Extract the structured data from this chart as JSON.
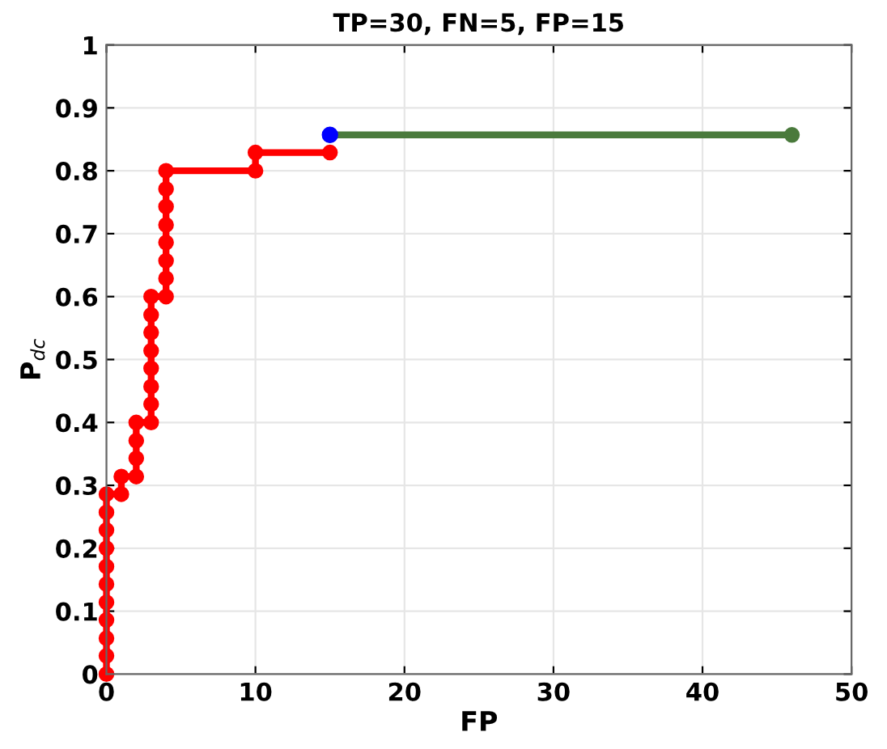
{
  "chart_data": {
    "type": "line",
    "title": "TP=30, FN=5, FP=15",
    "xlabel": "FP",
    "ylabel": "P$_{dc}$",
    "xlim": [
      0,
      50
    ],
    "xticks": [
      0,
      10,
      20,
      30,
      40,
      50
    ],
    "ylim": [
      0,
      1
    ],
    "yticks": [
      0,
      0.1,
      0.2,
      0.3,
      0.4,
      0.5,
      0.6,
      0.7,
      0.8,
      0.9,
      1
    ],
    "grid": true,
    "marker": "circle",
    "line_style": "solid",
    "series": [
      {
        "color": "#ff0000",
        "x": [
          0,
          0,
          0,
          0,
          0,
          0,
          0,
          0,
          0,
          0,
          0,
          1,
          1,
          2,
          2,
          2,
          2,
          3,
          3,
          3,
          3,
          3,
          3,
          3,
          3,
          4,
          4,
          4,
          4,
          4,
          4,
          4,
          4,
          10,
          10,
          15
        ],
        "values": [
          0,
          0.029,
          0.057,
          0.086,
          0.114,
          0.143,
          0.171,
          0.2,
          0.229,
          0.257,
          0.286,
          0.286,
          0.314,
          0.314,
          0.343,
          0.371,
          0.4,
          0.4,
          0.429,
          0.457,
          0.486,
          0.514,
          0.543,
          0.571,
          0.6,
          0.6,
          0.629,
          0.657,
          0.686,
          0.714,
          0.743,
          0.771,
          0.8,
          0.8,
          0.829,
          0.829
        ]
      },
      {
        "color": "#4a7a3c",
        "x": [
          15,
          46
        ],
        "values": [
          0.857,
          0.857
        ]
      },
      {
        "type": "scatter",
        "color": "#0000ff",
        "x": [
          15
        ],
        "values": [
          0.857
        ]
      }
    ]
  }
}
